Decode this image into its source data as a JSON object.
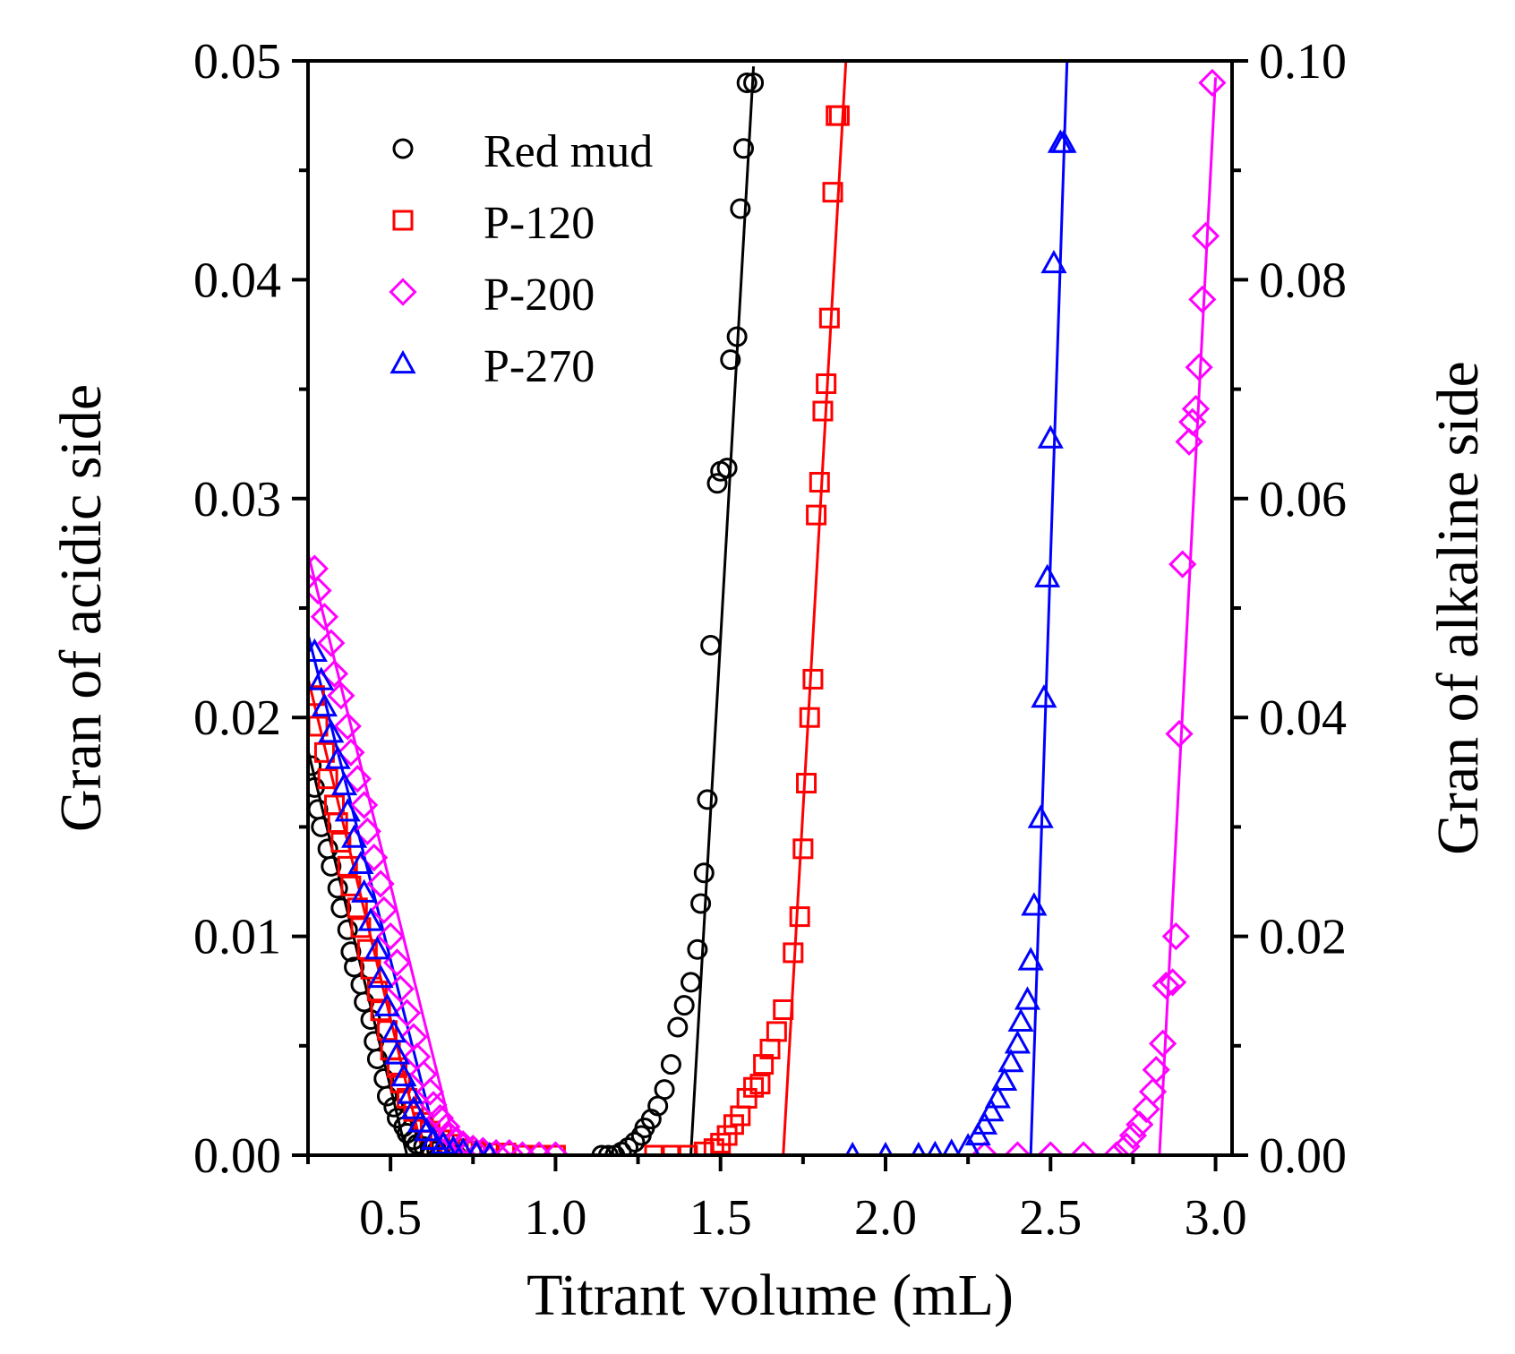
{
  "chart_data": {
    "type": "scatter",
    "title": "",
    "xlabel": "Titrant volume (mL)",
    "ylabel": "Gran of acidic side",
    "y2label": "Gran of alkaline side",
    "xlim": [
      0.25,
      3.05
    ],
    "ylim": [
      0,
      0.05
    ],
    "y2lim": [
      0,
      0.1
    ],
    "xticks": [
      0.5,
      1.0,
      1.5,
      2.0,
      2.5,
      3.0
    ],
    "xtick_labels": [
      "0.5",
      "1.0",
      "1.5",
      "2.0",
      "2.5",
      "3.0"
    ],
    "yticks": [
      0,
      0.01,
      0.02,
      0.03,
      0.04,
      0.05
    ],
    "ytick_labels": [
      "0.00",
      "0.01",
      "0.02",
      "0.03",
      "0.04",
      "0.05"
    ],
    "y2ticks": [
      0,
      0.02,
      0.04,
      0.06,
      0.08,
      0.1
    ],
    "y2tick_labels": [
      "0.00",
      "0.02",
      "0.04",
      "0.06",
      "0.08",
      "0.10"
    ],
    "grid": false,
    "legend_position": "top-left",
    "series": [
      {
        "name": "Red mud",
        "color": "#000000",
        "marker": "circle",
        "acidic": {
          "x": [
            0.26,
            0.27,
            0.28,
            0.29,
            0.31,
            0.32,
            0.34,
            0.35,
            0.37,
            0.38,
            0.39,
            0.41,
            0.42,
            0.44,
            0.45,
            0.46,
            0.48,
            0.49,
            0.51,
            0.52,
            0.54,
            0.55,
            0.57,
            0.58,
            0.6,
            0.62,
            0.64,
            0.67,
            0.7
          ],
          "y": [
            0.0178,
            0.0168,
            0.0158,
            0.015,
            0.014,
            0.0132,
            0.0122,
            0.0113,
            0.0103,
            0.0093,
            0.0086,
            0.0078,
            0.007,
            0.0062,
            0.0052,
            0.0044,
            0.0035,
            0.0027,
            0.0022,
            0.0017,
            0.0013,
            0.001,
            0.0007,
            0.0005,
            0.0004,
            0.0003,
            0.0002,
            0.0001,
            0.0
          ]
        },
        "alkaline": {
          "x": [
            1.14,
            1.16,
            1.18,
            1.2,
            1.22,
            1.24,
            1.26,
            1.27,
            1.29,
            1.31,
            1.33,
            1.35,
            1.37,
            1.39,
            1.41,
            1.43,
            1.44,
            1.45,
            1.46,
            1.47,
            1.49,
            1.5,
            1.52,
            1.53,
            1.55,
            1.56,
            1.57,
            1.58,
            1.6
          ],
          "y": [
            0.0,
            0.0,
            0.0,
            0.0003,
            0.0007,
            0.0012,
            0.0018,
            0.0025,
            0.0033,
            0.0045,
            0.006,
            0.0083,
            0.0117,
            0.0137,
            0.0158,
            0.0188,
            0.023,
            0.0258,
            0.0325,
            0.0466,
            0.0614,
            0.0625,
            0.0628,
            0.0727,
            0.0748,
            0.0865,
            0.092,
            0.098,
            0.098
          ]
        },
        "acidic_fit": {
          "x": [
            0.25,
            0.55
          ],
          "y": [
            0.0185,
            0.0
          ]
        },
        "alkaline_fit": {
          "x": [
            1.41,
            1.6
          ],
          "y": [
            0.0,
            0.0995
          ]
        }
      },
      {
        "name": "P-120",
        "color": "#ff0000",
        "marker": "square",
        "acidic": {
          "x": [
            0.27,
            0.28,
            0.3,
            0.31,
            0.33,
            0.34,
            0.35,
            0.37,
            0.38,
            0.4,
            0.41,
            0.43,
            0.44,
            0.46,
            0.47,
            0.49,
            0.5,
            0.52,
            0.53,
            0.55,
            0.57,
            0.6,
            0.62,
            0.65,
            0.68,
            0.72,
            0.76,
            0.8,
            0.85,
            0.9,
            0.95,
            1.0
          ],
          "y": [
            0.021,
            0.0196,
            0.0184,
            0.0172,
            0.016,
            0.0152,
            0.0143,
            0.0132,
            0.0123,
            0.0113,
            0.0104,
            0.0094,
            0.0085,
            0.0075,
            0.0066,
            0.0057,
            0.0048,
            0.004,
            0.0033,
            0.0026,
            0.002,
            0.0015,
            0.0011,
            0.0007,
            0.0005,
            0.0003,
            0.0002,
            0.0001,
            0.0001,
            0.0,
            0.0,
            0.0
          ]
        },
        "alkaline": {
          "x": [
            1.3,
            1.35,
            1.4,
            1.45,
            1.48,
            1.5,
            1.52,
            1.54,
            1.56,
            1.58,
            1.6,
            1.62,
            1.63,
            1.65,
            1.67,
            1.69,
            1.72,
            1.74,
            1.75,
            1.76,
            1.77,
            1.78,
            1.79,
            1.8,
            1.81,
            1.82,
            1.83,
            1.84,
            1.85,
            1.86
          ],
          "y": [
            0.0,
            0.0,
            0.0,
            0.0003,
            0.0006,
            0.0011,
            0.0018,
            0.0028,
            0.0036,
            0.0052,
            0.0062,
            0.0065,
            0.0083,
            0.0097,
            0.0113,
            0.0133,
            0.0185,
            0.0218,
            0.028,
            0.034,
            0.04,
            0.0435,
            0.0585,
            0.0615,
            0.068,
            0.0705,
            0.0765,
            0.088,
            0.095,
            0.095
          ]
        },
        "acidic_fit": {
          "x": [
            0.25,
            0.6
          ],
          "y": [
            0.0218,
            0.0
          ]
        },
        "alkaline_fit": {
          "x": [
            1.69,
            1.88
          ],
          "y": [
            0.0,
            0.1
          ]
        }
      },
      {
        "name": "P-200",
        "color": "#ff00ff",
        "marker": "diamond",
        "acidic": {
          "x": [
            0.27,
            0.28,
            0.3,
            0.32,
            0.33,
            0.35,
            0.37,
            0.38,
            0.4,
            0.42,
            0.43,
            0.45,
            0.47,
            0.48,
            0.5,
            0.52,
            0.53,
            0.55,
            0.57,
            0.58,
            0.6,
            0.62,
            0.63,
            0.65,
            0.67,
            0.68,
            0.7,
            0.72,
            0.75,
            0.78,
            0.82,
            0.86,
            0.9,
            0.95,
            1.0
          ],
          "y": [
            0.0268,
            0.0258,
            0.0246,
            0.0234,
            0.022,
            0.021,
            0.0196,
            0.0184,
            0.0172,
            0.016,
            0.0148,
            0.0136,
            0.0124,
            0.0112,
            0.01,
            0.0088,
            0.0076,
            0.0065,
            0.0054,
            0.0045,
            0.0037,
            0.0029,
            0.0023,
            0.0017,
            0.0013,
            0.0009,
            0.0007,
            0.0005,
            0.0003,
            0.0002,
            0.0001,
            0.0001,
            0.0,
            0.0,
            0.0
          ]
        },
        "alkaline": {
          "x": [
            2.3,
            2.4,
            2.5,
            2.6,
            2.7,
            2.73,
            2.75,
            2.77,
            2.79,
            2.81,
            2.82,
            2.84,
            2.85,
            2.87,
            2.88,
            2.89,
            2.9,
            2.92,
            2.93,
            2.94,
            2.95,
            2.96,
            2.97,
            2.99
          ],
          "y": [
            0.0,
            0.0,
            0.0,
            0.0,
            0.0,
            0.0008,
            0.0018,
            0.0028,
            0.0042,
            0.0058,
            0.0078,
            0.0102,
            0.0155,
            0.0158,
            0.02,
            0.0385,
            0.054,
            0.0652,
            0.067,
            0.0682,
            0.072,
            0.0782,
            0.084,
            0.098
          ]
        },
        "acidic_fit": {
          "x": [
            0.25,
            0.7
          ],
          "y": [
            0.0275,
            0.0002
          ]
        },
        "alkaline_fit": {
          "x": [
            2.83,
            3.0
          ],
          "y": [
            0.0,
            0.0985
          ]
        }
      },
      {
        "name": "P-270",
        "color": "#0000ff",
        "marker": "triangle",
        "acidic": {
          "x": [
            0.27,
            0.29,
            0.3,
            0.32,
            0.34,
            0.36,
            0.37,
            0.39,
            0.41,
            0.42,
            0.44,
            0.46,
            0.47,
            0.49,
            0.51,
            0.52,
            0.54,
            0.56,
            0.57,
            0.59,
            0.61,
            0.63,
            0.66,
            0.69,
            0.72,
            0.76,
            0.8
          ],
          "y": [
            0.023,
            0.0217,
            0.0205,
            0.0193,
            0.0181,
            0.0169,
            0.0157,
            0.0145,
            0.0133,
            0.012,
            0.0107,
            0.0094,
            0.0081,
            0.0068,
            0.0056,
            0.0046,
            0.0036,
            0.0028,
            0.0021,
            0.0015,
            0.0011,
            0.0007,
            0.0005,
            0.0003,
            0.0002,
            0.0001,
            0.0
          ]
        },
        "alkaline": {
          "x": [
            1.9,
            2.0,
            2.1,
            2.15,
            2.2,
            2.25,
            2.28,
            2.3,
            2.32,
            2.34,
            2.36,
            2.38,
            2.4,
            2.41,
            2.43,
            2.44,
            2.45,
            2.47,
            2.48,
            2.49,
            2.5,
            2.51,
            2.53,
            2.54
          ],
          "y": [
            0.0,
            0.0,
            0.0,
            0.0001,
            0.0003,
            0.0008,
            0.0018,
            0.0028,
            0.004,
            0.0052,
            0.0068,
            0.0085,
            0.0102,
            0.0122,
            0.0142,
            0.0178,
            0.0228,
            0.0308,
            0.0418,
            0.0528,
            0.0655,
            0.0815,
            0.0925,
            0.0925
          ]
        },
        "acidic_fit": {
          "x": [
            0.25,
            0.65
          ],
          "y": [
            0.0238,
            0.0
          ]
        },
        "alkaline_fit": {
          "x": [
            2.44,
            2.55
          ],
          "y": [
            0.0,
            0.1
          ]
        }
      }
    ]
  }
}
